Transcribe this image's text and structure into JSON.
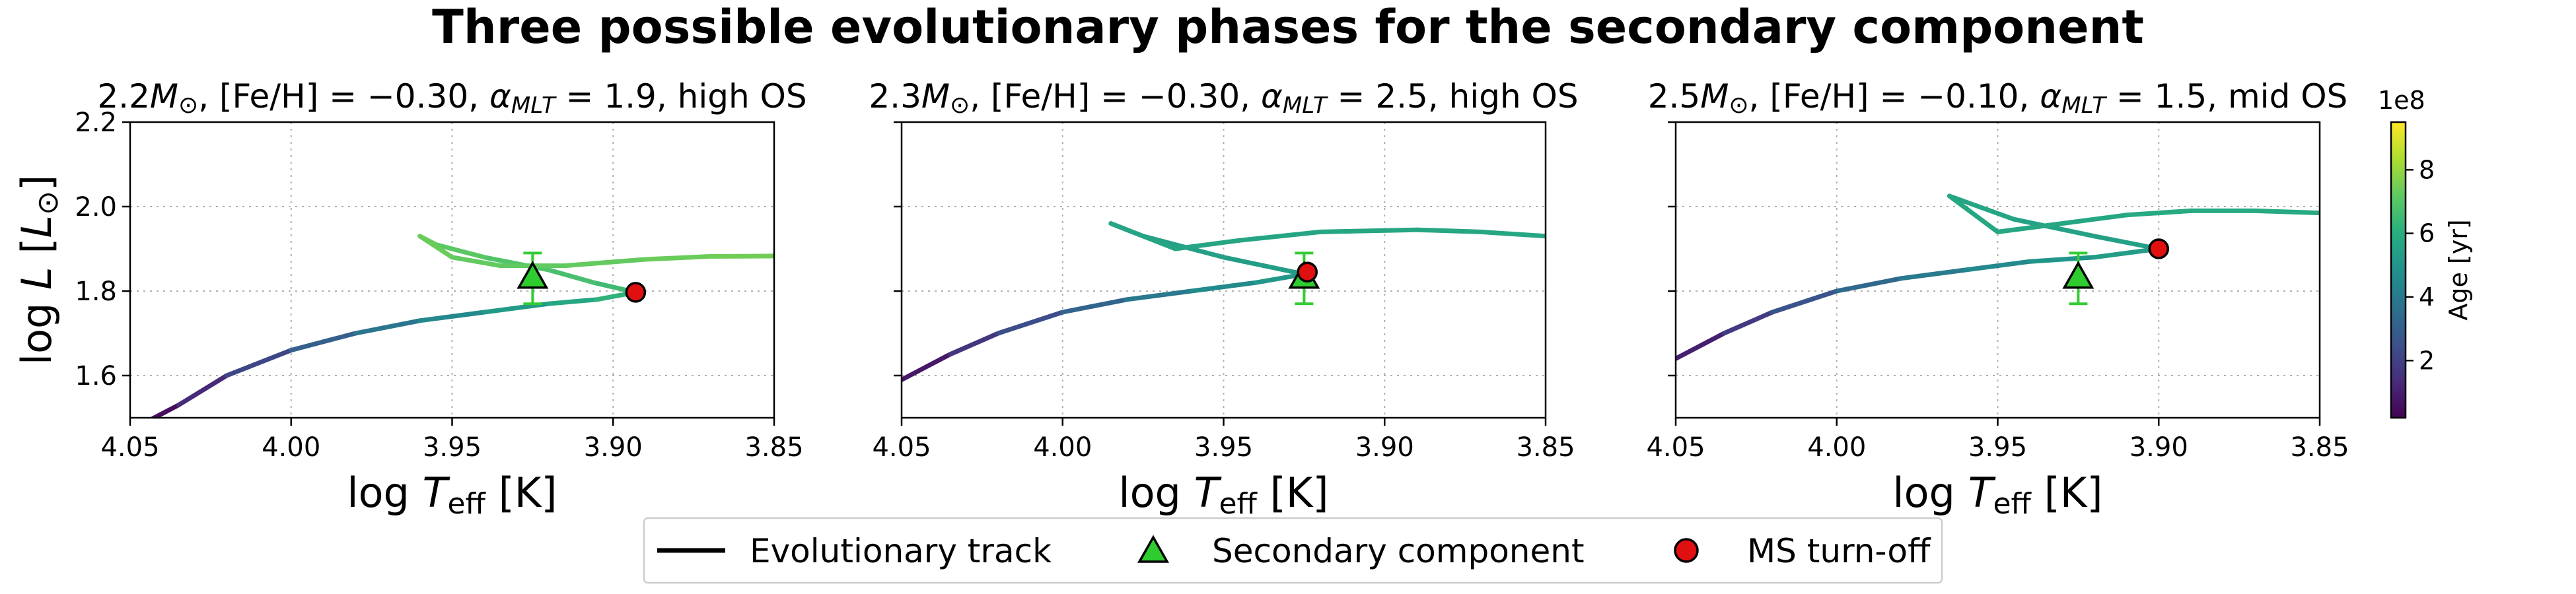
{
  "figure": {
    "title": "Three possible evolutionary phases for the secondary component"
  },
  "chart_data": [
    {
      "type": "line",
      "title": "2.2M⊙, [Fe/H] = −0.30, αMLT = 1.9, high OS",
      "title_parts": {
        "mass": "2.2",
        "feh": "[Fe/H] = −0.30, ",
        "alpha": "1.9",
        "os": "high OS"
      },
      "xlabel": "log Teff [K]",
      "ylabel": "log L [L⊙]",
      "xlim": [
        4.05,
        3.85
      ],
      "ylim": [
        1.5,
        2.2
      ],
      "xticks": [
        "4.05",
        "4.00",
        "3.95",
        "3.90",
        "3.85"
      ],
      "yticks": [
        "1.6",
        "1.8",
        "2.0",
        "2.2"
      ],
      "grid": true,
      "track": {
        "name": "Evolutionary track",
        "x": [
          4.045,
          4.035,
          4.02,
          4.0,
          3.98,
          3.96,
          3.94,
          3.92,
          3.905,
          3.893,
          3.906,
          3.92,
          3.94,
          3.955,
          3.96,
          3.95,
          3.935,
          3.915,
          3.89,
          3.87,
          3.85
        ],
        "y": [
          1.49,
          1.53,
          1.6,
          1.66,
          1.7,
          1.73,
          1.75,
          1.77,
          1.78,
          1.797,
          1.82,
          1.85,
          1.88,
          1.91,
          1.93,
          1.88,
          1.86,
          1.86,
          1.875,
          1.882,
          1.883
        ],
        "age": [
          0.2,
          0.9,
          1.7,
          2.6,
          3.4,
          4.2,
          4.9,
          5.5,
          6.0,
          6.4,
          6.6,
          6.8,
          7.0,
          7.2,
          7.4,
          7.3,
          7.2,
          7.2,
          7.3,
          7.4,
          7.5
        ]
      },
      "secondary": {
        "x": 3.925,
        "y": 1.83,
        "yerr": 0.06
      },
      "ms_turnoff": {
        "x": 3.893,
        "y": 1.797
      }
    },
    {
      "type": "line",
      "title": "2.3M⊙, [Fe/H] = −0.30, αMLT = 2.5, high OS",
      "title_parts": {
        "mass": "2.3",
        "feh": "[Fe/H] = −0.30, ",
        "alpha": "2.5",
        "os": "high OS"
      },
      "xlabel": "log Teff [K]",
      "ylabel": "",
      "xlim": [
        4.05,
        3.85
      ],
      "ylim": [
        1.5,
        2.2
      ],
      "xticks": [
        "4.05",
        "4.00",
        "3.95",
        "3.90",
        "3.85"
      ],
      "yticks": [],
      "grid": true,
      "track": {
        "name": "Evolutionary track",
        "x": [
          4.05,
          4.035,
          4.02,
          4.0,
          3.98,
          3.96,
          3.94,
          3.925,
          3.95,
          3.975,
          3.985,
          3.965,
          3.945,
          3.92,
          3.89,
          3.87,
          3.85
        ],
        "y": [
          1.59,
          1.65,
          1.7,
          1.75,
          1.78,
          1.8,
          1.82,
          1.84,
          1.88,
          1.93,
          1.96,
          1.9,
          1.92,
          1.94,
          1.945,
          1.94,
          1.93
        ],
        "age": [
          0.4,
          1.2,
          2.0,
          2.8,
          3.6,
          4.3,
          4.9,
          5.3,
          5.4,
          5.5,
          5.6,
          5.6,
          5.6,
          5.7,
          5.7,
          5.7,
          5.8
        ]
      },
      "secondary": {
        "x": 3.925,
        "y": 1.83,
        "yerr": 0.06
      },
      "ms_turnoff": {
        "x": 3.924,
        "y": 1.845
      }
    },
    {
      "type": "line",
      "title": "2.5M⊙, [Fe/H] = −0.10, αMLT = 1.5, mid OS",
      "title_parts": {
        "mass": "2.5",
        "feh": "[Fe/H] = −0.10, ",
        "alpha": "1.5",
        "os": "mid OS"
      },
      "xlabel": "log Teff [K]",
      "ylabel": "",
      "xlim": [
        4.05,
        3.85
      ],
      "ylim": [
        1.5,
        2.2
      ],
      "xticks": [
        "4.05",
        "4.00",
        "3.95",
        "3.90",
        "3.85"
      ],
      "yticks": [],
      "grid": true,
      "track": {
        "name": "Evolutionary track",
        "x": [
          4.05,
          4.035,
          4.02,
          4.0,
          3.98,
          3.96,
          3.94,
          3.92,
          3.9,
          3.92,
          3.945,
          3.965,
          3.95,
          3.93,
          3.91,
          3.89,
          3.87,
          3.85
        ],
        "y": [
          1.64,
          1.7,
          1.75,
          1.8,
          1.83,
          1.85,
          1.87,
          1.88,
          1.9,
          1.93,
          1.97,
          2.025,
          1.94,
          1.96,
          1.98,
          1.99,
          1.99,
          1.985
        ],
        "age": [
          0.6,
          1.4,
          2.2,
          3.0,
          3.7,
          4.3,
          4.8,
          5.2,
          5.4,
          5.5,
          5.6,
          5.7,
          5.7,
          5.7,
          5.8,
          5.8,
          5.8,
          5.8
        ]
      },
      "secondary": {
        "x": 3.925,
        "y": 1.83,
        "yerr": 0.06
      },
      "ms_turnoff": {
        "x": 3.9,
        "y": 1.9
      }
    }
  ],
  "colorbar": {
    "label": "Age [yr]",
    "exponent": "1e8",
    "range": [
      0.2,
      9.5
    ],
    "ticks": [
      "2",
      "4",
      "6",
      "8"
    ],
    "tick_values": [
      2,
      4,
      6,
      8
    ]
  },
  "legend": {
    "placement": "bottom-center",
    "items": [
      {
        "label": "Evolutionary track",
        "marker": "line",
        "color": "#000000"
      },
      {
        "label": "Secondary component",
        "marker": "triangle",
        "color": "#33cc33"
      },
      {
        "label": "MS turn-off",
        "marker": "circle",
        "color": "#dd1111"
      }
    ]
  },
  "colors": {
    "secondary_fill": "#2ecc2e",
    "errorbar": "#33cc33",
    "turnoff_fill": "#e01010",
    "marker_edge": "#000000",
    "grid": "#b0b0b0"
  }
}
